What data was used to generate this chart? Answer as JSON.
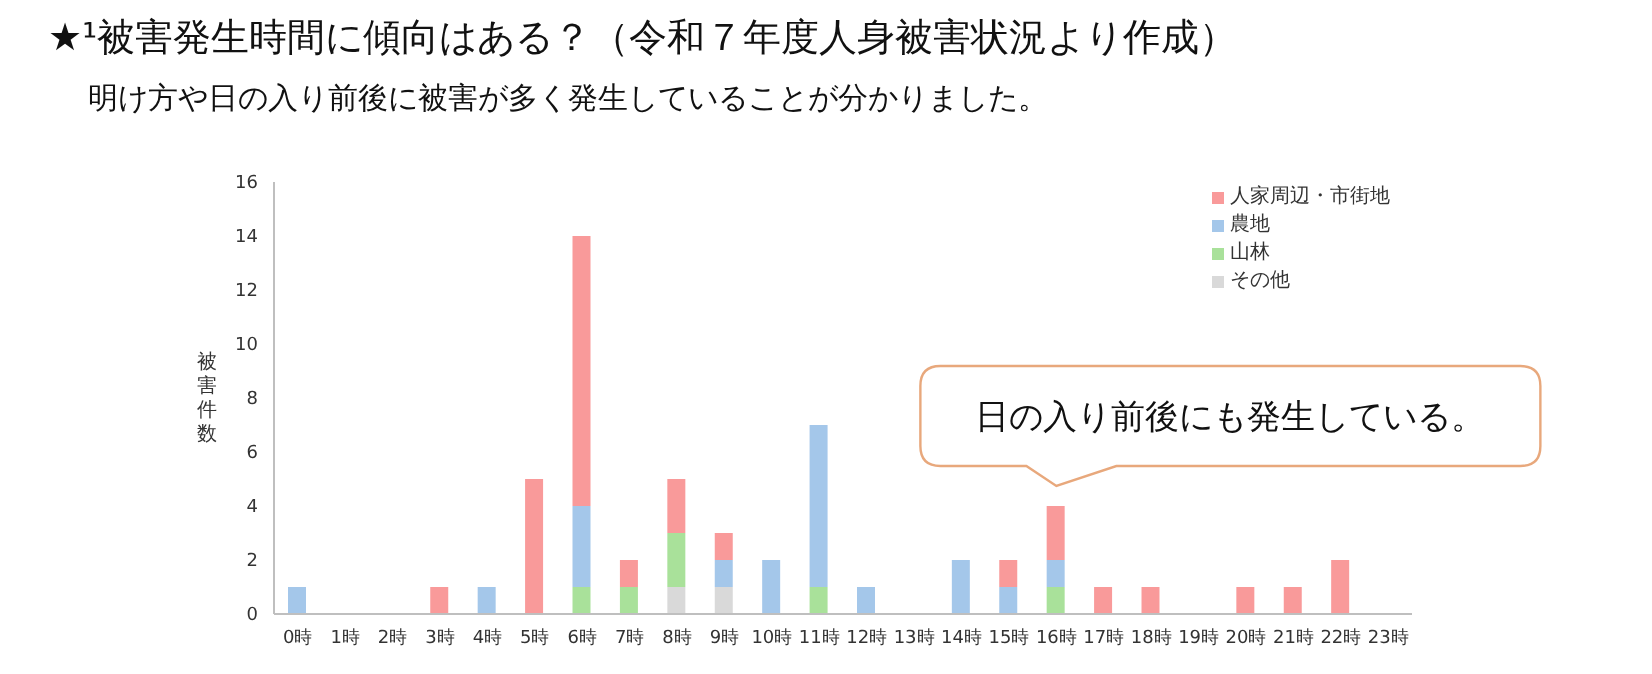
{
  "chart_data": {
    "type": "bar",
    "title": "★¹被害発生時間に傾向はある？（令和７年度人身被害状況より作成）",
    "subtitle": "明け方や日の入り前後に被害が多く発生していることが分かりました。",
    "ylabel": "被害件数",
    "categories": [
      "0時",
      "1時",
      "2時",
      "3時",
      "4時",
      "5時",
      "6時",
      "7時",
      "8時",
      "9時",
      "10時",
      "11時",
      "12時",
      "13時",
      "14時",
      "15時",
      "16時",
      "17時",
      "18時",
      "19時",
      "20時",
      "21時",
      "22時",
      "23時"
    ],
    "stacked": true,
    "series": [
      {
        "name": "その他",
        "color": "#d9d9d9",
        "values": [
          0,
          0,
          0,
          0,
          0,
          0,
          0,
          0,
          1,
          1,
          0,
          0,
          0,
          0,
          0,
          0,
          0,
          0,
          0,
          0,
          0,
          0,
          0,
          0
        ]
      },
      {
        "name": "山林",
        "color": "#a9e19a",
        "values": [
          0,
          0,
          0,
          0,
          0,
          0,
          1,
          1,
          2,
          0,
          0,
          1,
          0,
          0,
          0,
          0,
          1,
          0,
          0,
          0,
          0,
          0,
          0,
          0
        ]
      },
      {
        "name": "農地",
        "color": "#a4c7ea",
        "values": [
          1,
          0,
          0,
          0,
          1,
          0,
          3,
          0,
          0,
          1,
          2,
          6,
          1,
          0,
          2,
          1,
          1,
          0,
          0,
          0,
          0,
          0,
          0,
          0
        ]
      },
      {
        "name": "人家周辺・市街地",
        "color": "#f99a9a",
        "values": [
          0,
          0,
          0,
          1,
          0,
          5,
          10,
          1,
          2,
          1,
          0,
          0,
          0,
          0,
          0,
          1,
          2,
          1,
          1,
          0,
          1,
          1,
          2,
          0
        ]
      }
    ],
    "ylim": [
      0,
      16
    ],
    "yticks": [
      0,
      2,
      4,
      6,
      8,
      10,
      12,
      14,
      16
    ],
    "legend": "top right",
    "annotations": [
      {
        "text": "日の入り前後にも発生している。",
        "x": "16時",
        "y": 4
      }
    ]
  }
}
